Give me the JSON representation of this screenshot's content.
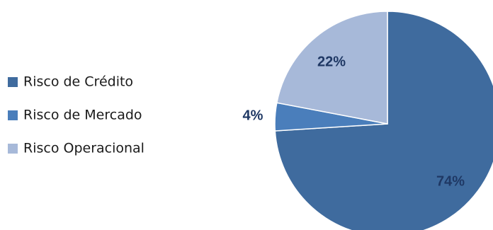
{
  "chart_data": {
    "type": "pie",
    "labels": [
      "Risco de Crédito",
      "Risco de Mercado",
      "Risco Operacional"
    ],
    "values": [
      74,
      4,
      22
    ],
    "data_labels": [
      "74%",
      "4%",
      "22%"
    ],
    "colors": [
      "#3F6B9E",
      "#4A7EBB",
      "#A7B9D9"
    ],
    "label_color": "#1F3864",
    "legend_position": "left",
    "start_angle_deg": 0,
    "direction": "clockwise"
  }
}
